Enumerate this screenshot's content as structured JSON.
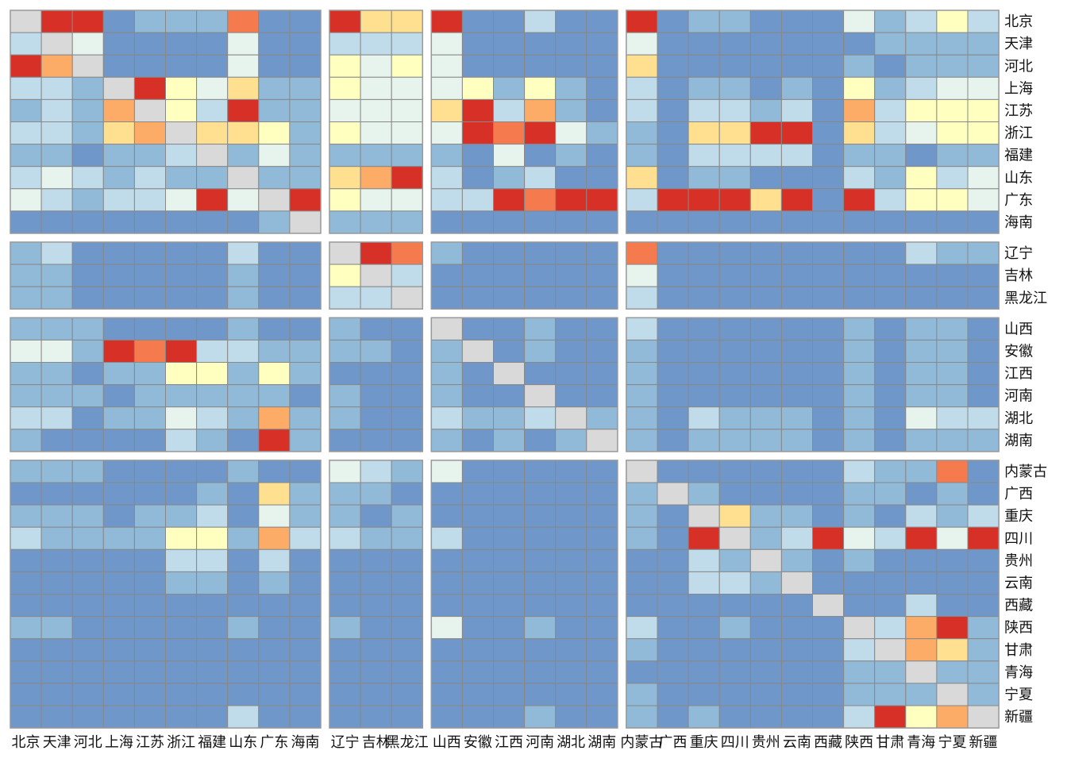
{
  "chart_data": {
    "type": "heatmap",
    "title": "",
    "row_labels": [
      "北京",
      "天津",
      "河北",
      "上海",
      "江苏",
      "浙江",
      "福建",
      "山东",
      "广东",
      "海南",
      "辽宁",
      "吉林",
      "黑龙江",
      "山西",
      "安徽",
      "江西",
      "河南",
      "湖北",
      "湖南",
      "内蒙古",
      "广西",
      "重庆",
      "四川",
      "贵州",
      "云南",
      "西藏",
      "陕西",
      "甘肃",
      "青海",
      "宁夏",
      "新疆"
    ],
    "col_labels": [
      "北京",
      "天津",
      "河北",
      "上海",
      "江苏",
      "浙江",
      "福建",
      "山东",
      "广东",
      "海南",
      "辽宁",
      "吉林",
      "黑龙江",
      "山西",
      "安徽",
      "江西",
      "河南",
      "湖北",
      "湖南",
      "内蒙古",
      "广西",
      "重庆",
      "四川",
      "贵州",
      "云南",
      "西藏",
      "陕西",
      "甘肃",
      "青海",
      "宁夏",
      "新疆"
    ],
    "row_groups": [
      10,
      3,
      6,
      12
    ],
    "col_groups": [
      10,
      3,
      6,
      12
    ],
    "value_range": [
      0,
      10
    ],
    "diagonal": "n/a",
    "color_scale": [
      "#4575b4",
      "#6f97c9",
      "#91bad9",
      "#c0dbea",
      "#e7f4ee",
      "#ffffbf",
      "#fee090",
      "#fcac66",
      "#f57b4f",
      "#d73027"
    ],
    "diagonal_color": "#d9d9d9",
    "grid_color": "#888888",
    "matrix": [
      [
        "d",
        9,
        9,
        1,
        2,
        2,
        2,
        8,
        1,
        1,
        9,
        6,
        6,
        9,
        1,
        1,
        3,
        1,
        1,
        9,
        1,
        2,
        2,
        1,
        1,
        1,
        4,
        2,
        3,
        5,
        3
      ],
      [
        3,
        "d",
        4,
        1,
        1,
        1,
        1,
        4,
        1,
        1,
        3,
        3,
        3,
        4,
        1,
        1,
        1,
        1,
        1,
        4,
        1,
        1,
        1,
        1,
        1,
        1,
        1,
        2,
        2,
        2,
        2
      ],
      [
        9,
        7,
        "d",
        1,
        1,
        1,
        1,
        4,
        1,
        1,
        5,
        4,
        5,
        4,
        1,
        1,
        1,
        1,
        1,
        6,
        1,
        1,
        1,
        1,
        1,
        1,
        2,
        1,
        2,
        2,
        2
      ],
      [
        3,
        3,
        2,
        "d",
        9,
        5,
        4,
        6,
        2,
        2,
        5,
        4,
        4,
        4,
        5,
        2,
        5,
        2,
        1,
        3,
        1,
        2,
        2,
        1,
        2,
        1,
        5,
        2,
        3,
        4,
        4
      ],
      [
        2,
        3,
        2,
        7,
        "d",
        5,
        3,
        9,
        2,
        2,
        4,
        4,
        4,
        6,
        9,
        3,
        7,
        2,
        1,
        3,
        1,
        3,
        3,
        2,
        3,
        1,
        7,
        3,
        5,
        5,
        5
      ],
      [
        3,
        3,
        2,
        6,
        7,
        "d",
        6,
        6,
        5,
        2,
        5,
        4,
        4,
        4,
        9,
        8,
        9,
        4,
        2,
        2,
        1,
        6,
        6,
        9,
        9,
        1,
        6,
        3,
        4,
        5,
        5
      ],
      [
        2,
        2,
        1,
        2,
        2,
        3,
        "d",
        2,
        4,
        2,
        2,
        2,
        2,
        2,
        1,
        4,
        1,
        2,
        1,
        2,
        1,
        3,
        3,
        3,
        3,
        1,
        2,
        2,
        1,
        2,
        2
      ],
      [
        3,
        4,
        3,
        2,
        3,
        2,
        2,
        "d",
        2,
        2,
        6,
        7,
        9,
        3,
        1,
        2,
        3,
        1,
        1,
        6,
        1,
        2,
        2,
        1,
        1,
        1,
        3,
        2,
        5,
        3,
        4
      ],
      [
        4,
        3,
        2,
        3,
        3,
        4,
        9,
        4,
        "d",
        9,
        5,
        4,
        4,
        3,
        3,
        9,
        8,
        9,
        9,
        3,
        9,
        9,
        9,
        6,
        9,
        1,
        9,
        3,
        5,
        5,
        4
      ],
      [
        1,
        1,
        1,
        1,
        1,
        1,
        1,
        1,
        2,
        "d",
        2,
        2,
        2,
        1,
        1,
        1,
        1,
        1,
        1,
        1,
        1,
        1,
        1,
        1,
        1,
        1,
        1,
        1,
        1,
        1,
        1
      ],
      [
        2,
        3,
        1,
        1,
        1,
        1,
        1,
        3,
        1,
        1,
        "d",
        9,
        8,
        2,
        1,
        1,
        1,
        1,
        1,
        8,
        1,
        1,
        1,
        1,
        1,
        1,
        1,
        1,
        3,
        2,
        2
      ],
      [
        2,
        2,
        1,
        1,
        1,
        1,
        1,
        2,
        1,
        1,
        5,
        "d",
        3,
        1,
        1,
        1,
        1,
        1,
        1,
        4,
        1,
        1,
        1,
        1,
        1,
        1,
        1,
        1,
        1,
        1,
        1
      ],
      [
        2,
        2,
        1,
        1,
        1,
        1,
        1,
        2,
        1,
        1,
        3,
        3,
        "d",
        1,
        1,
        1,
        1,
        1,
        1,
        3,
        1,
        1,
        1,
        1,
        1,
        1,
        1,
        1,
        1,
        1,
        1
      ],
      [
        2,
        2,
        2,
        1,
        1,
        1,
        1,
        2,
        1,
        1,
        2,
        1,
        1,
        "d",
        1,
        1,
        2,
        1,
        1,
        3,
        1,
        1,
        1,
        1,
        1,
        1,
        2,
        1,
        2,
        2,
        1
      ],
      [
        4,
        4,
        2,
        9,
        8,
        9,
        3,
        3,
        2,
        2,
        2,
        2,
        1,
        2,
        "d",
        1,
        2,
        1,
        1,
        2,
        1,
        1,
        1,
        1,
        1,
        1,
        2,
        1,
        2,
        2,
        1
      ],
      [
        2,
        2,
        1,
        2,
        2,
        5,
        5,
        2,
        5,
        2,
        1,
        1,
        1,
        2,
        1,
        "d",
        1,
        1,
        1,
        2,
        1,
        1,
        1,
        1,
        1,
        1,
        2,
        1,
        2,
        2,
        1
      ],
      [
        2,
        2,
        2,
        1,
        2,
        2,
        2,
        2,
        2,
        1,
        2,
        1,
        1,
        2,
        1,
        1,
        "d",
        1,
        1,
        2,
        1,
        1,
        1,
        1,
        1,
        1,
        2,
        1,
        2,
        2,
        1
      ],
      [
        3,
        3,
        1,
        2,
        2,
        4,
        3,
        2,
        7,
        2,
        2,
        1,
        1,
        3,
        2,
        2,
        3,
        "d",
        2,
        2,
        1,
        3,
        2,
        2,
        2,
        1,
        2,
        1,
        4,
        3,
        3
      ],
      [
        2,
        1,
        1,
        1,
        1,
        3,
        2,
        1,
        9,
        2,
        1,
        1,
        1,
        2,
        1,
        2,
        1,
        2,
        "d",
        2,
        1,
        2,
        2,
        2,
        2,
        1,
        2,
        1,
        2,
        2,
        2
      ],
      [
        2,
        2,
        2,
        1,
        1,
        1,
        1,
        2,
        1,
        1,
        4,
        3,
        2,
        4,
        1,
        1,
        1,
        1,
        1,
        "d",
        1,
        1,
        1,
        1,
        1,
        1,
        3,
        2,
        2,
        8,
        1
      ],
      [
        1,
        1,
        1,
        1,
        1,
        1,
        2,
        1,
        6,
        2,
        2,
        2,
        1,
        1,
        1,
        1,
        1,
        1,
        1,
        2,
        "d",
        2,
        1,
        1,
        1,
        1,
        2,
        2,
        1,
        2,
        1
      ],
      [
        2,
        2,
        2,
        1,
        2,
        2,
        3,
        1,
        4,
        2,
        2,
        1,
        2,
        1,
        1,
        1,
        1,
        1,
        1,
        2,
        1,
        "d",
        6,
        2,
        2,
        1,
        2,
        1,
        3,
        2,
        3
      ],
      [
        3,
        2,
        2,
        2,
        2,
        5,
        5,
        2,
        7,
        3,
        3,
        2,
        2,
        3,
        1,
        1,
        1,
        1,
        1,
        2,
        1,
        9,
        "d",
        2,
        3,
        9,
        4,
        3,
        9,
        4,
        9
      ],
      [
        1,
        1,
        1,
        1,
        1,
        3,
        3,
        1,
        3,
        1,
        1,
        1,
        1,
        1,
        1,
        1,
        1,
        1,
        1,
        1,
        1,
        3,
        2,
        "d",
        2,
        1,
        2,
        1,
        1,
        1,
        1
      ],
      [
        1,
        1,
        1,
        1,
        1,
        2,
        2,
        1,
        2,
        1,
        1,
        1,
        1,
        1,
        1,
        1,
        1,
        1,
        1,
        1,
        1,
        3,
        3,
        2,
        "d",
        1,
        1,
        1,
        1,
        1,
        1
      ],
      [
        1,
        1,
        1,
        1,
        1,
        1,
        1,
        1,
        1,
        1,
        1,
        1,
        1,
        1,
        1,
        1,
        1,
        1,
        1,
        1,
        1,
        1,
        1,
        1,
        1,
        "d",
        1,
        1,
        3,
        1,
        1
      ],
      [
        2,
        2,
        1,
        1,
        1,
        1,
        1,
        2,
        1,
        1,
        2,
        1,
        1,
        4,
        1,
        1,
        2,
        1,
        1,
        3,
        1,
        1,
        2,
        1,
        1,
        1,
        "d",
        3,
        7,
        9,
        2
      ],
      [
        1,
        1,
        1,
        1,
        1,
        1,
        1,
        1,
        1,
        1,
        1,
        1,
        1,
        1,
        1,
        1,
        1,
        1,
        1,
        2,
        1,
        1,
        1,
        1,
        1,
        1,
        3,
        "d",
        7,
        6,
        2
      ],
      [
        1,
        1,
        1,
        1,
        1,
        1,
        1,
        1,
        1,
        1,
        1,
        1,
        1,
        1,
        1,
        1,
        1,
        1,
        1,
        1,
        1,
        1,
        1,
        1,
        1,
        1,
        2,
        2,
        "d",
        2,
        2
      ],
      [
        1,
        1,
        1,
        1,
        1,
        1,
        1,
        1,
        1,
        1,
        1,
        1,
        1,
        1,
        1,
        1,
        1,
        1,
        1,
        2,
        1,
        1,
        1,
        1,
        1,
        1,
        2,
        2,
        2,
        "d",
        2
      ],
      [
        1,
        1,
        1,
        1,
        1,
        1,
        1,
        3,
        1,
        1,
        1,
        1,
        1,
        1,
        1,
        1,
        2,
        1,
        1,
        2,
        1,
        2,
        1,
        1,
        1,
        1,
        3,
        9,
        5,
        7,
        "d"
      ]
    ]
  }
}
